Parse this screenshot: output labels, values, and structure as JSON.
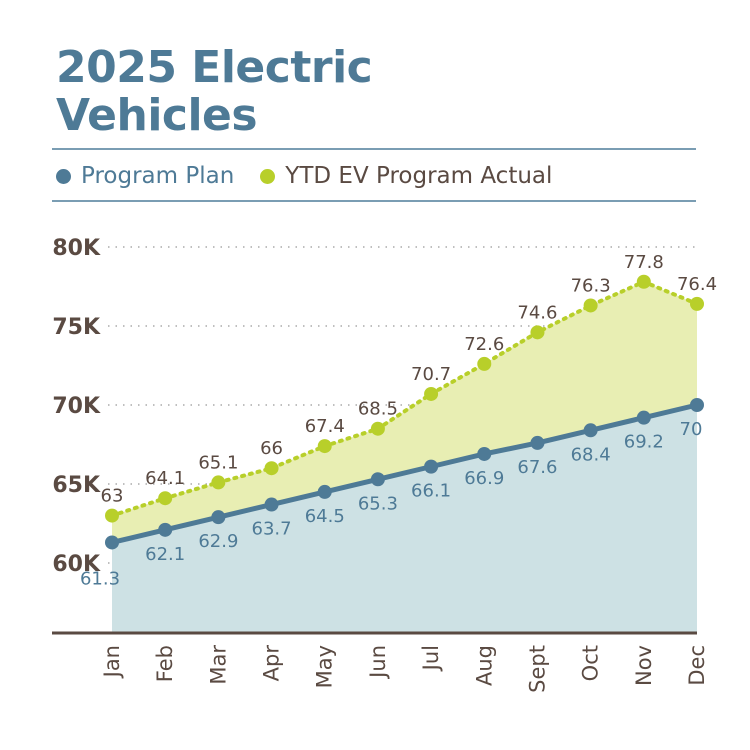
{
  "title_line1": "2025 Electric",
  "title_line2": "Vehicles",
  "colors": {
    "plan": "#4e7a96",
    "actual": "#b8cf2a",
    "plan_fill": "#cde1e4",
    "actual_fill": "#e8eeb3",
    "text": "#5a4a42"
  },
  "chart_data": {
    "type": "line",
    "title": "2025 Electric Vehicles",
    "xlabel": "",
    "ylabel": "",
    "categories": [
      "Jan",
      "Feb",
      "Mar",
      "Apr",
      "May",
      "Jun",
      "Jul",
      "Aug",
      "Sept",
      "Oct",
      "Nov",
      "Dec"
    ],
    "series": [
      {
        "name": "Program Plan",
        "values": [
          61.3,
          62.1,
          62.9,
          63.7,
          64.5,
          65.3,
          66.1,
          66.9,
          67.6,
          68.4,
          69.2,
          70
        ]
      },
      {
        "name": "YTD EV Program Actual",
        "values": [
          63,
          64.1,
          65.1,
          66,
          67.4,
          68.5,
          70.7,
          72.6,
          74.6,
          76.3,
          77.8,
          76.4
        ]
      }
    ],
    "yticks": [
      "60K",
      "65K",
      "70K",
      "75K",
      "80K"
    ],
    "ytick_values": [
      60,
      65,
      70,
      75,
      80
    ],
    "ylim": [
      55.6,
      80
    ],
    "grid": true,
    "legend": "top"
  }
}
